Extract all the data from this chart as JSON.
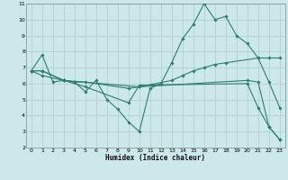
{
  "xlabel": "Humidex (Indice chaleur)",
  "bg_color": "#cce8ea",
  "grid_color": "#aacccc",
  "line_color": "#2e7d6e",
  "xlim": [
    -0.5,
    23.5
  ],
  "ylim": [
    2,
    11
  ],
  "xticks": [
    0,
    1,
    2,
    3,
    4,
    5,
    6,
    7,
    8,
    9,
    10,
    11,
    12,
    13,
    14,
    15,
    16,
    17,
    18,
    19,
    20,
    21,
    22,
    23
  ],
  "yticks": [
    2,
    3,
    4,
    5,
    6,
    7,
    8,
    9,
    10,
    11
  ],
  "series": [
    {
      "x": [
        0,
        1,
        2,
        3,
        4,
        5,
        6,
        7,
        8,
        9,
        10,
        11,
        12,
        13,
        14,
        15,
        16,
        17,
        18,
        19,
        20,
        21,
        22,
        23
      ],
      "y": [
        6.8,
        7.8,
        6.1,
        6.2,
        6.1,
        5.5,
        6.2,
        5.0,
        4.4,
        3.6,
        3.0,
        5.7,
        6.0,
        7.3,
        8.8,
        9.7,
        11.0,
        10.0,
        10.2,
        9.0,
        8.5,
        7.6,
        6.1,
        4.5
      ]
    },
    {
      "x": [
        0,
        1,
        3,
        10,
        13,
        14,
        15,
        16,
        17,
        18,
        21,
        22,
        23
      ],
      "y": [
        6.8,
        6.8,
        6.2,
        5.8,
        6.2,
        6.5,
        6.8,
        7.0,
        7.2,
        7.3,
        7.6,
        7.6,
        7.6
      ]
    },
    {
      "x": [
        0,
        1,
        3,
        4,
        5,
        9,
        10,
        20,
        21,
        22,
        23
      ],
      "y": [
        6.8,
        6.8,
        6.2,
        6.1,
        6.1,
        5.7,
        5.8,
        6.2,
        6.1,
        3.3,
        2.5
      ]
    },
    {
      "x": [
        0,
        1,
        3,
        5,
        9,
        10,
        20,
        21,
        22,
        23
      ],
      "y": [
        6.8,
        6.5,
        6.2,
        5.8,
        4.8,
        5.9,
        6.0,
        4.5,
        3.3,
        2.5
      ]
    }
  ]
}
